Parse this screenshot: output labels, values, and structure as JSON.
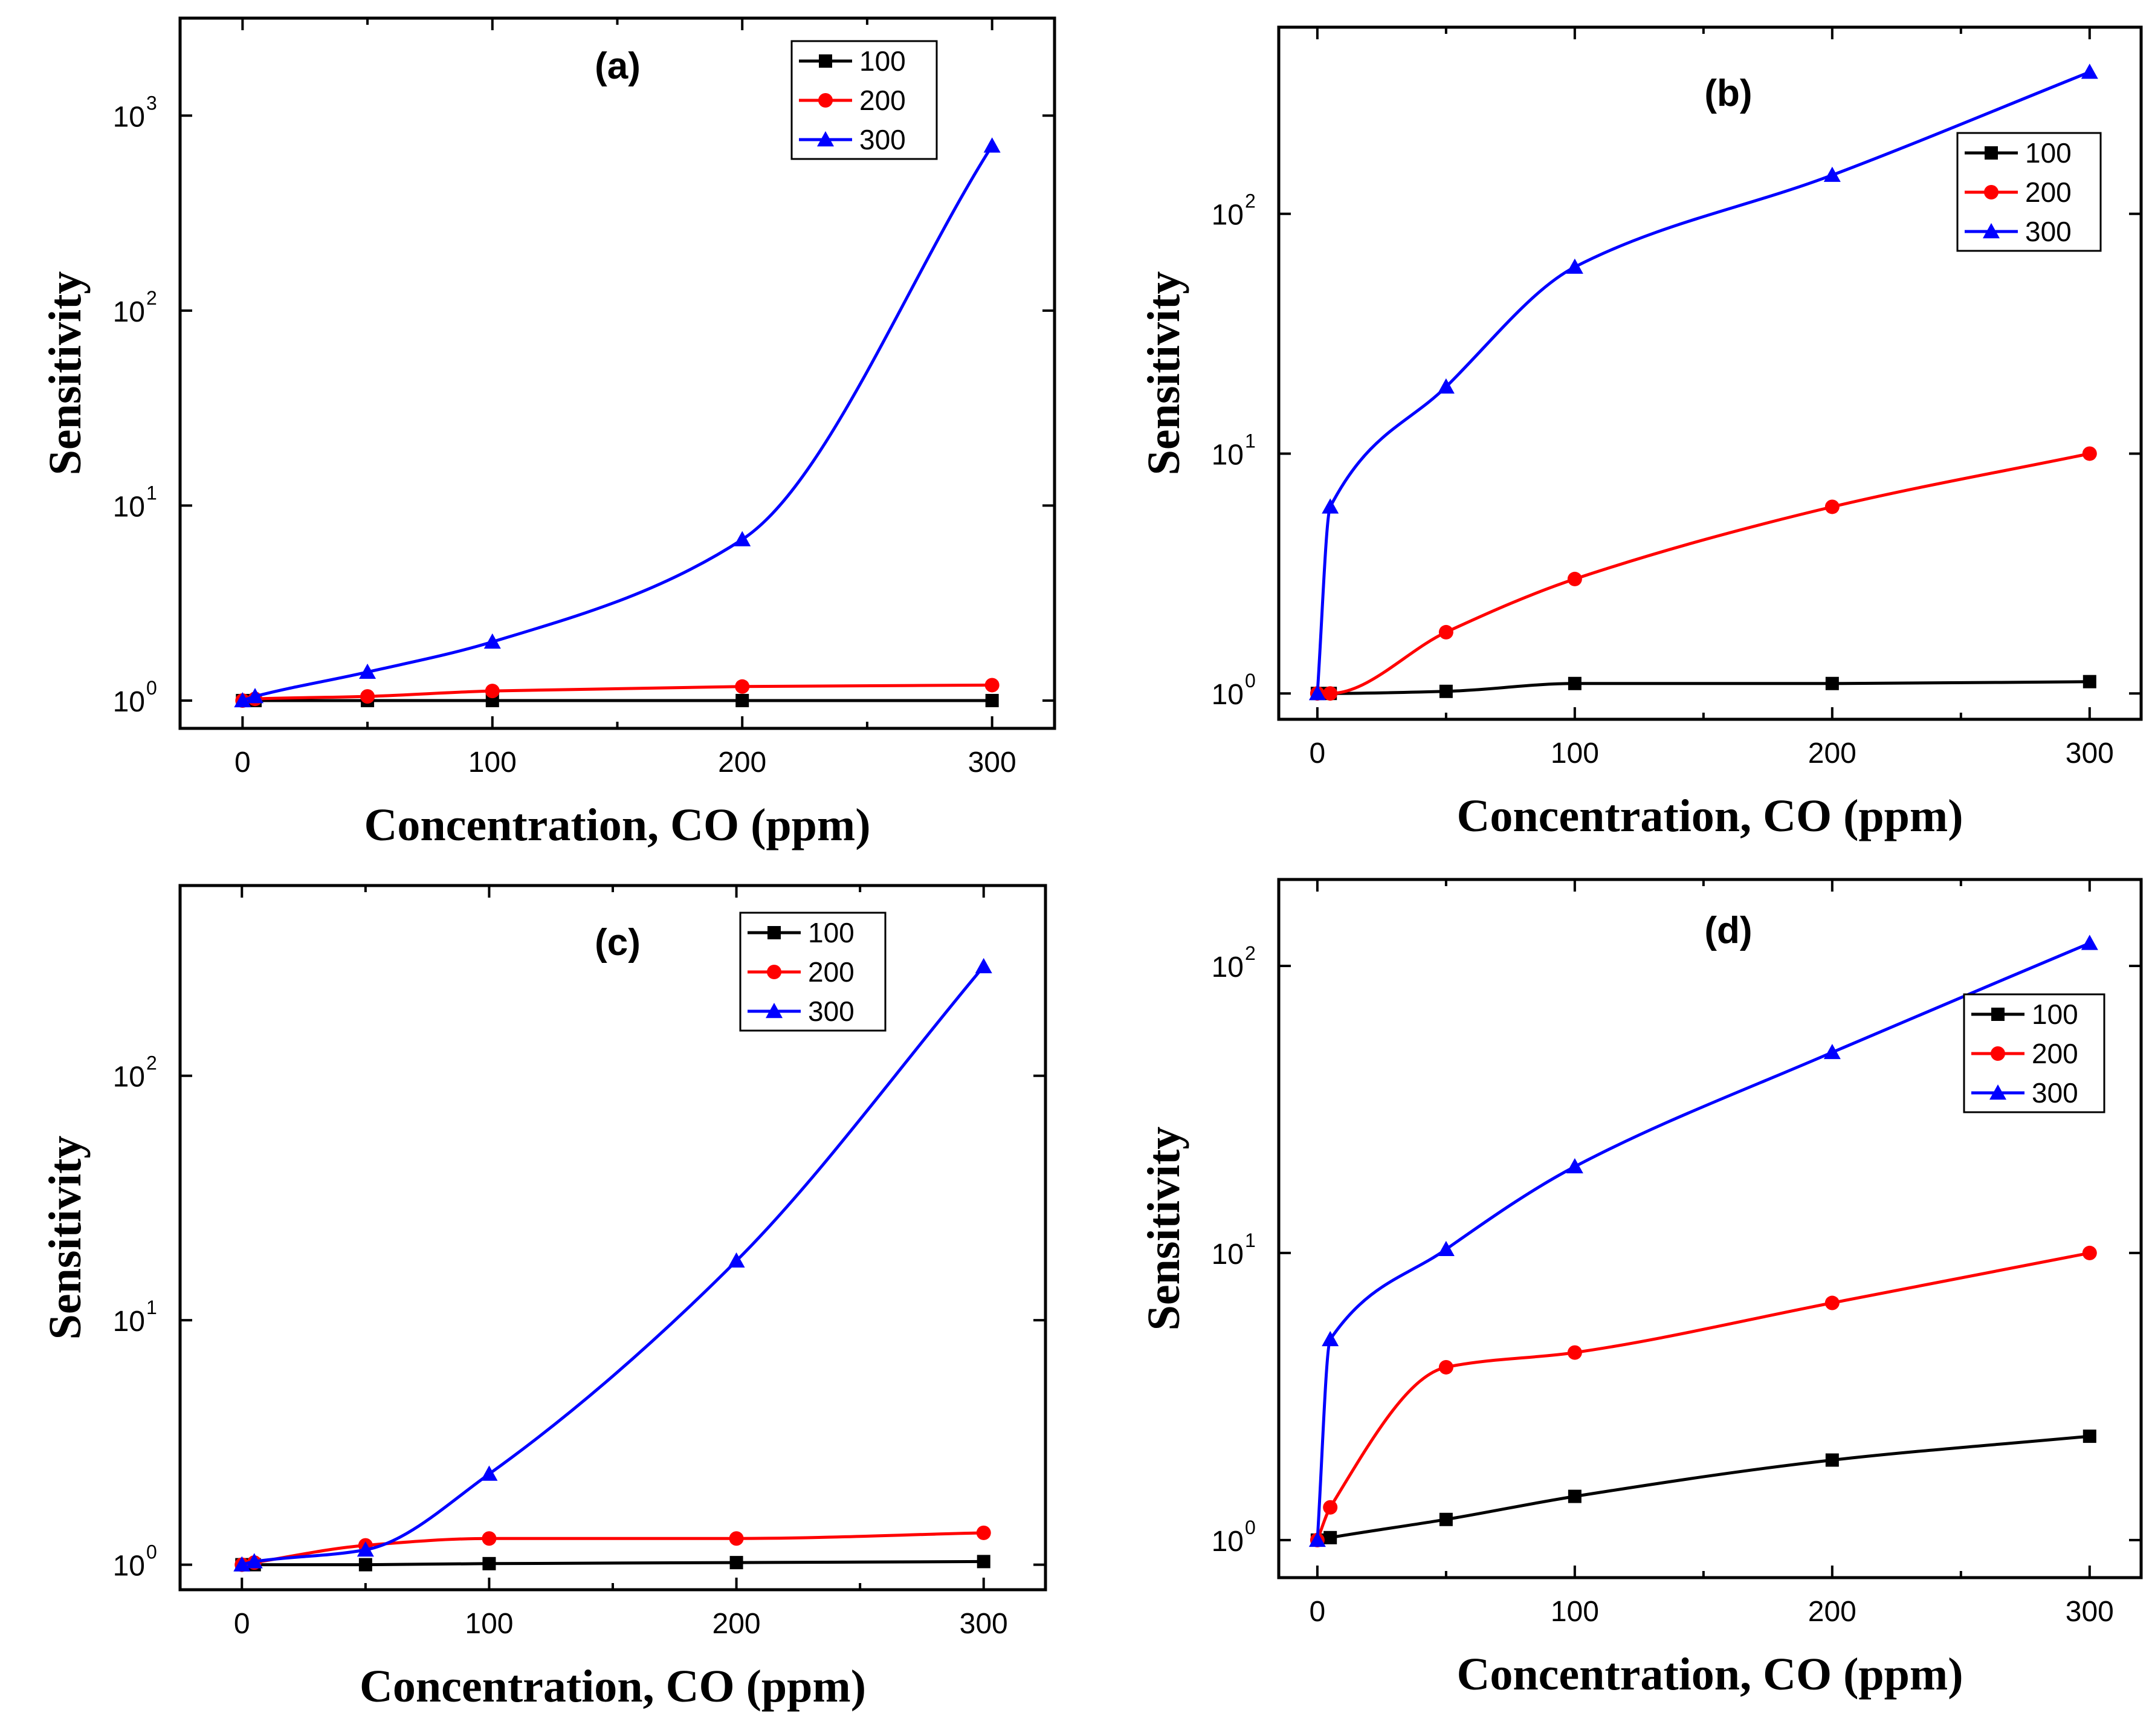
{
  "chart_data": [
    {
      "type": "line",
      "title": "(a)",
      "xlabel": "Concentration, CO (ppm)",
      "ylabel": "Sensitivity",
      "yscale": "log",
      "xlim": [
        -25,
        325
      ],
      "ylim": [
        0.72,
        3162
      ],
      "xticks": [
        0,
        100,
        200,
        300
      ],
      "xtick_labels": [
        "0",
        "100",
        "200",
        "300"
      ],
      "yticks": [
        1,
        10,
        100,
        1000
      ],
      "ytick_base_labels": [
        "10",
        "10",
        "10",
        "10"
      ],
      "ytick_exponents": [
        "0",
        "1",
        "2",
        "3"
      ],
      "legend_position": "top-right",
      "x": [
        0,
        5,
        50,
        100,
        200,
        300
      ],
      "series": [
        {
          "name": "100",
          "marker": "square",
          "color": "#000000",
          "values": [
            1.0,
            1.0,
            1.0,
            1.0,
            1.0,
            1.0
          ]
        },
        {
          "name": "200",
          "marker": "circle",
          "color": "#ff0000",
          "values": [
            1.0,
            1.02,
            1.05,
            1.12,
            1.18,
            1.2
          ]
        },
        {
          "name": "300",
          "marker": "triangle",
          "color": "#0000ff",
          "values": [
            1.0,
            1.05,
            1.4,
            2.0,
            6.7,
            700
          ]
        }
      ]
    },
    {
      "type": "line",
      "title": "(b)",
      "xlabel": "Concentration, CO (ppm)",
      "ylabel": "Sensitivity",
      "yscale": "log",
      "xlim": [
        -15,
        320
      ],
      "ylim": [
        0.78,
        600
      ],
      "xticks": [
        0,
        100,
        200,
        300
      ],
      "xtick_labels": [
        "0",
        "100",
        "200",
        "300"
      ],
      "yticks": [
        1,
        10,
        100
      ],
      "ytick_base_labels": [
        "10",
        "10",
        "10"
      ],
      "ytick_exponents": [
        "0",
        "1",
        "2"
      ],
      "legend_position": "top-right",
      "x": [
        0,
        5,
        50,
        100,
        200,
        300
      ],
      "series": [
        {
          "name": "100",
          "marker": "square",
          "color": "#000000",
          "values": [
            1.0,
            1.0,
            1.02,
            1.1,
            1.1,
            1.12
          ]
        },
        {
          "name": "200",
          "marker": "circle",
          "color": "#ff0000",
          "values": [
            1.0,
            1.0,
            1.8,
            3.0,
            6.0,
            10.0
          ]
        },
        {
          "name": "300",
          "marker": "triangle",
          "color": "#0000ff",
          "values": [
            1.0,
            6.0,
            19.0,
            60.0,
            145.0,
            390.0
          ]
        }
      ]
    },
    {
      "type": "line",
      "title": "(c)",
      "xlabel": "Concentration, CO (ppm)",
      "ylabel": "Sensitivity",
      "yscale": "log",
      "xlim": [
        -25,
        325
      ],
      "ylim": [
        0.79,
        600
      ],
      "xticks": [
        0,
        100,
        200,
        300
      ],
      "xtick_labels": [
        "0",
        "100",
        "200",
        "300"
      ],
      "yticks": [
        1,
        10,
        100
      ],
      "ytick_base_labels": [
        "10",
        "10",
        "10"
      ],
      "ytick_exponents": [
        "0",
        "1",
        "2"
      ],
      "legend_position": "top-right",
      "x": [
        0,
        5,
        50,
        100,
        200,
        300
      ],
      "series": [
        {
          "name": "100",
          "marker": "square",
          "color": "#000000",
          "values": [
            1.0,
            1.0,
            1.0,
            1.01,
            1.02,
            1.03
          ]
        },
        {
          "name": "200",
          "marker": "circle",
          "color": "#ff0000",
          "values": [
            1.0,
            1.02,
            1.2,
            1.28,
            1.28,
            1.35
          ]
        },
        {
          "name": "300",
          "marker": "triangle",
          "color": "#0000ff",
          "values": [
            1.0,
            1.03,
            1.15,
            2.35,
            17.5,
            280.0
          ]
        }
      ]
    },
    {
      "type": "line",
      "title": "(d)",
      "xlabel": "Concentration, CO (ppm)",
      "ylabel": "Sensitivity",
      "yscale": "log",
      "xlim": [
        -15,
        320
      ],
      "ylim": [
        0.74,
        200
      ],
      "xticks": [
        0,
        100,
        200,
        300
      ],
      "xtick_labels": [
        "0",
        "100",
        "200",
        "300"
      ],
      "yticks": [
        1,
        10,
        100
      ],
      "ytick_base_labels": [
        "10",
        "10",
        "10"
      ],
      "ytick_exponents": [
        "0",
        "1",
        "2"
      ],
      "legend_position": "top-right",
      "x": [
        0,
        5,
        50,
        100,
        200,
        300
      ],
      "series": [
        {
          "name": "100",
          "marker": "square",
          "color": "#000000",
          "values": [
            1.0,
            1.02,
            1.18,
            1.42,
            1.9,
            2.3
          ]
        },
        {
          "name": "200",
          "marker": "circle",
          "color": "#ff0000",
          "values": [
            1.0,
            1.3,
            4.0,
            4.5,
            6.7,
            10.0
          ]
        },
        {
          "name": "300",
          "marker": "triangle",
          "color": "#0000ff",
          "values": [
            1.0,
            5.0,
            10.3,
            20.0,
            50.0,
            120.0
          ]
        }
      ]
    }
  ]
}
